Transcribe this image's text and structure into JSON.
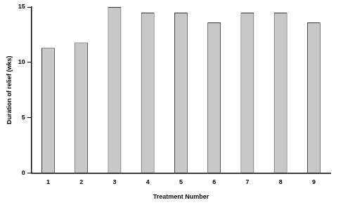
{
  "chart_data": {
    "type": "bar",
    "x_label": "Treatment Number",
    "y_label": "Duration of relief (wks)",
    "categories": [
      "1",
      "2",
      "3",
      "4",
      "5",
      "6",
      "7",
      "8",
      "9"
    ],
    "values": [
      11.3,
      11.8,
      15,
      14.5,
      14.5,
      13.6,
      14.5,
      14.5,
      13.6
    ],
    "color": "#c8c8c8",
    "ylim": [
      0,
      15
    ],
    "yticks": [
      0,
      5,
      10,
      15
    ],
    "grid": false
  }
}
